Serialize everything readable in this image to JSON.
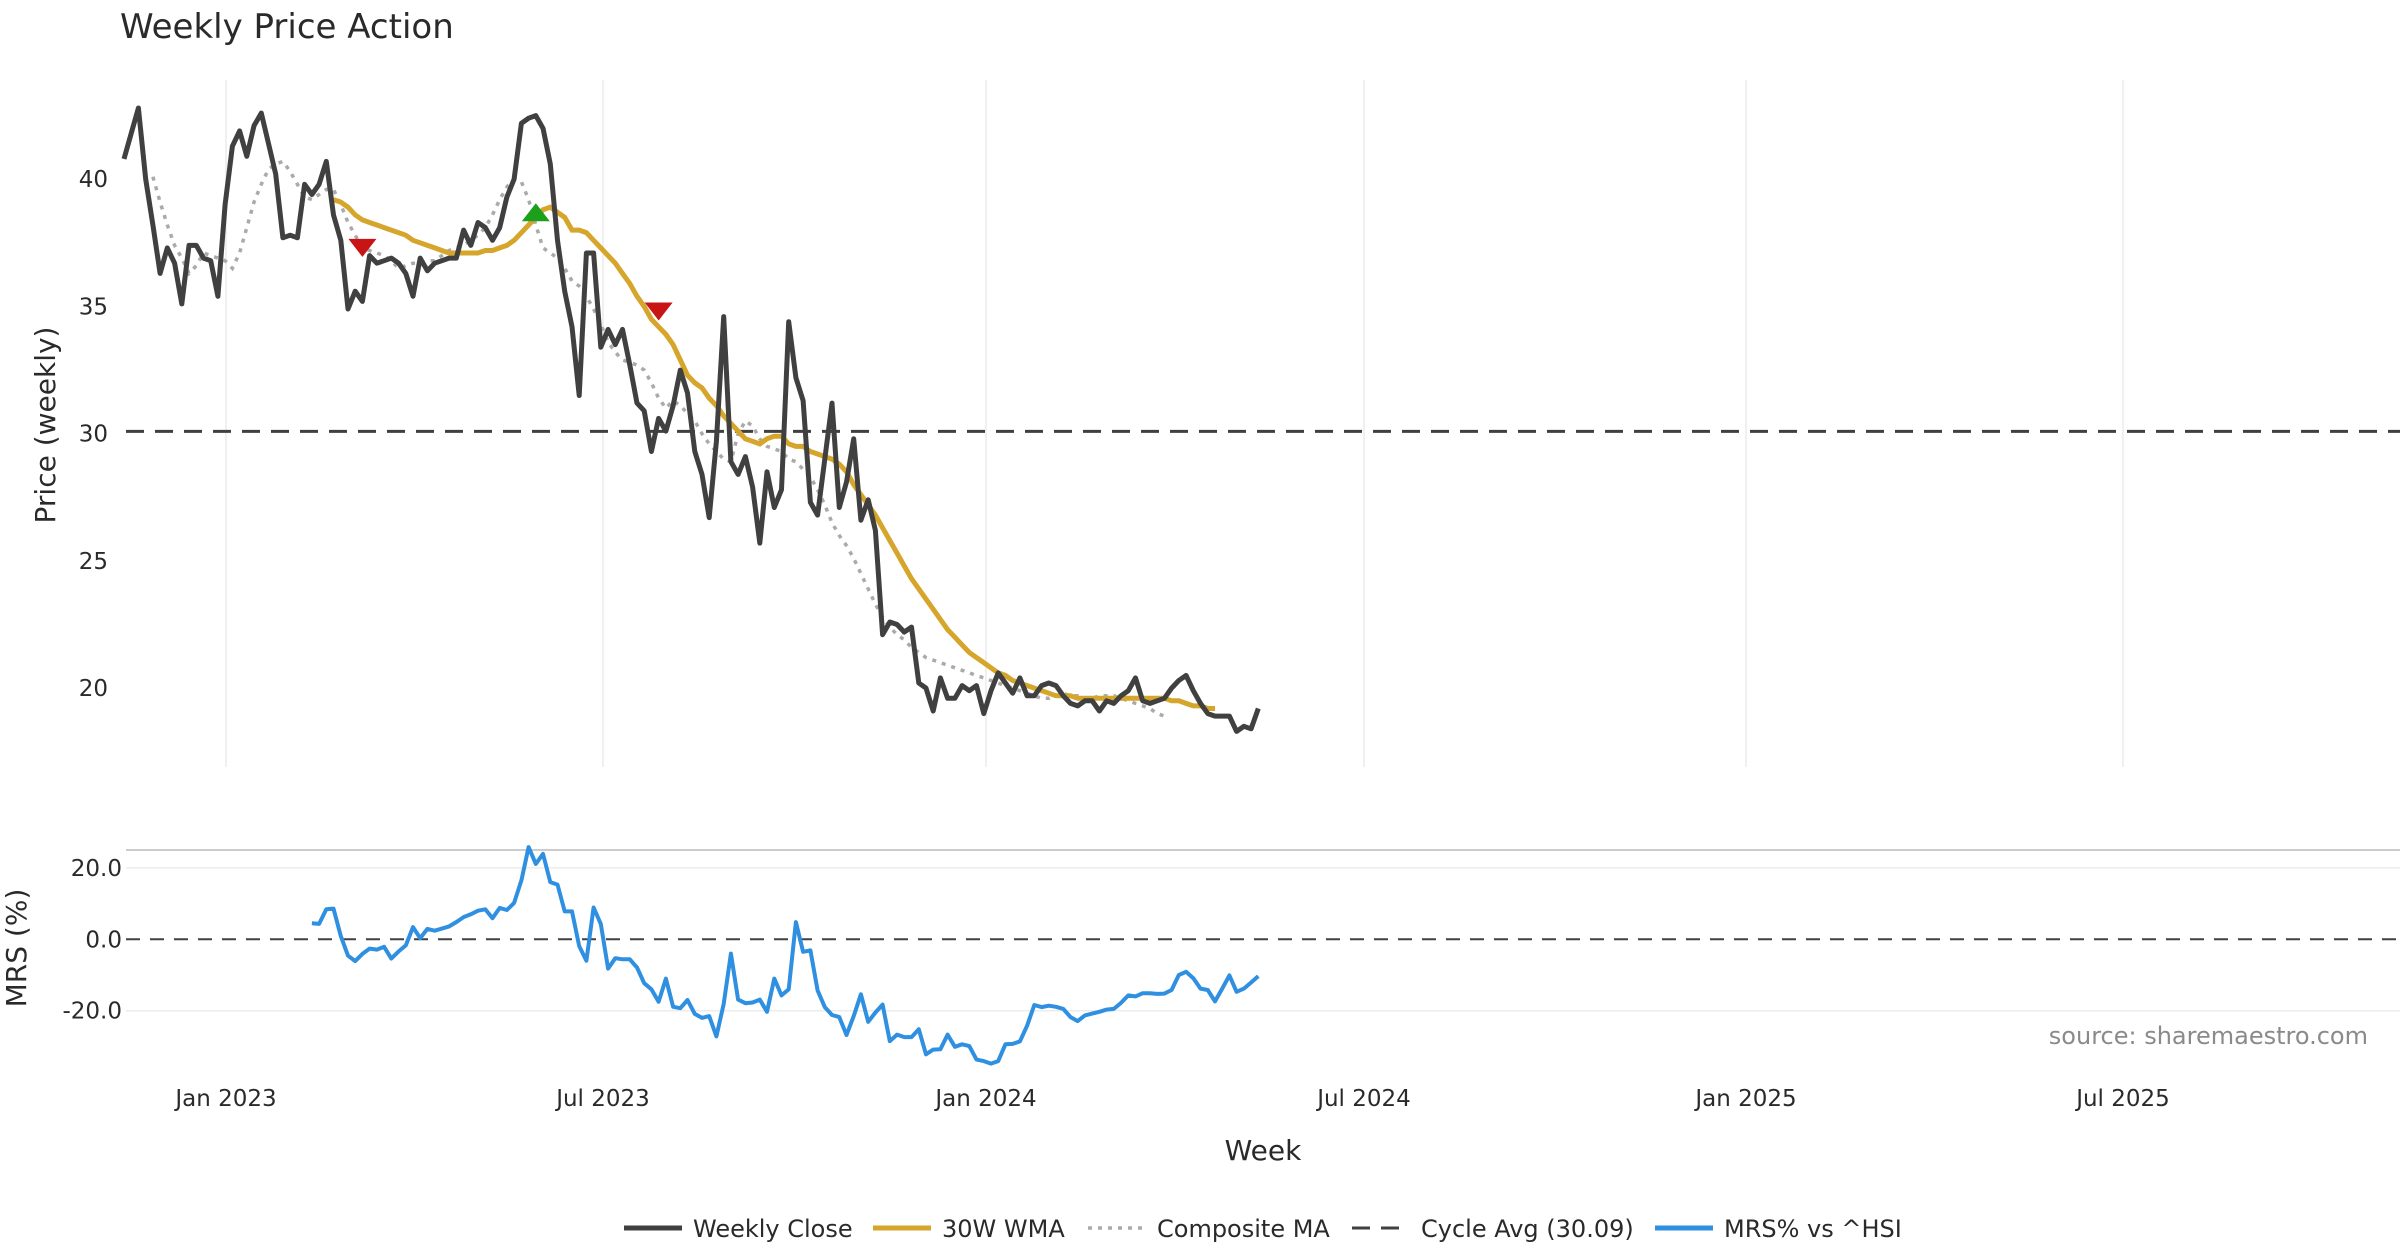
{
  "chart_data": {
    "type": "line",
    "title": "Weekly Price Action",
    "xlabel": "Week",
    "source": "source: sharemaestro.com",
    "x_ticks": [
      "Jan 2023",
      "Jul 2023",
      "Jan 2024",
      "Jul 2024",
      "Jan 2025",
      "Jul 2025"
    ],
    "price_panel": {
      "ylabel": "Price (weekly)",
      "ylim": [
        16.9,
        43.9
      ],
      "y_ticks": [
        "20",
        "25",
        "30",
        "35",
        "40"
      ],
      "y_tick_values": [
        20,
        25,
        30,
        35,
        40
      ],
      "cycle_avg": 30.09,
      "weekly_close": {
        "name": "Weekly Close",
        "color": "#404040",
        "values": [
          40.8,
          41.8,
          42.8,
          40.0,
          38.2,
          36.3,
          37.3,
          36.7,
          35.1,
          37.4,
          37.4,
          36.9,
          36.8,
          35.4,
          39.0,
          41.3,
          41.9,
          40.9,
          42.1,
          42.6,
          41.4,
          40.2,
          37.7,
          37.8,
          37.7,
          39.8,
          39.4,
          39.8,
          40.7,
          38.6,
          37.6,
          34.9,
          35.6,
          35.2,
          37.0,
          36.7,
          36.8,
          36.9,
          36.7,
          36.3,
          35.4,
          36.9,
          36.4,
          36.7,
          36.8,
          36.9,
          36.9,
          38.0,
          37.4,
          38.3,
          38.1,
          37.6,
          38.1,
          39.3,
          40.0,
          42.2,
          42.4,
          42.5,
          42.0,
          40.6,
          37.6,
          35.6,
          34.2,
          31.5,
          37.1,
          37.1,
          33.4,
          34.1,
          33.5,
          34.1,
          32.7,
          31.2,
          30.9,
          29.3,
          30.6,
          30.1,
          31.1,
          32.5,
          31.6,
          29.3,
          28.4,
          26.7,
          29.7,
          34.6,
          28.9,
          28.4,
          29.1,
          27.9,
          25.7,
          28.5,
          27.1,
          27.8,
          34.4,
          32.2,
          31.3,
          27.3,
          26.8,
          29.0,
          31.2,
          27.1,
          28.1,
          29.8,
          26.6,
          27.4,
          26.2,
          22.1,
          22.6,
          22.5,
          22.2,
          22.4,
          20.2,
          20.0,
          19.1,
          20.4,
          19.6,
          19.6,
          20.1,
          19.9,
          20.1,
          19.0,
          19.9,
          20.6,
          20.2,
          19.8,
          20.4,
          19.7,
          19.7,
          20.1,
          20.2,
          20.1,
          19.7,
          19.4,
          19.3,
          19.5,
          19.5,
          19.1,
          19.5,
          19.4,
          19.7,
          19.9,
          20.4,
          19.5,
          19.4,
          19.5,
          19.6,
          20.0,
          20.3,
          20.5,
          19.9,
          19.4,
          19.0,
          18.9,
          18.9,
          18.9,
          18.3,
          18.5,
          18.4,
          19.2
        ]
      },
      "wma_30w": {
        "name": "30W WMA",
        "color": "#d6a62c",
        "start_index": 29,
        "values": [
          39.2,
          39.1,
          38.9,
          38.6,
          38.4,
          38.3,
          38.2,
          38.1,
          38.0,
          37.9,
          37.8,
          37.6,
          37.5,
          37.4,
          37.3,
          37.2,
          37.1,
          37.1,
          37.1,
          37.1,
          37.1,
          37.2,
          37.2,
          37.3,
          37.4,
          37.6,
          37.9,
          38.2,
          38.5,
          38.8,
          38.9,
          38.7,
          38.5,
          38.0,
          38.0,
          37.9,
          37.6,
          37.3,
          37.0,
          36.7,
          36.3,
          35.9,
          35.4,
          35.0,
          34.5,
          34.2,
          33.9,
          33.5,
          32.9,
          32.3,
          32.0,
          31.8,
          31.4,
          31.1,
          30.7,
          30.4,
          30.1,
          29.8,
          29.7,
          29.6,
          29.8,
          29.9,
          29.9,
          29.6,
          29.5,
          29.5,
          29.3,
          29.2,
          29.1,
          29.0,
          28.8,
          28.5,
          28.0,
          27.6,
          27.2,
          26.8,
          26.3,
          25.8,
          25.3,
          24.8,
          24.3,
          23.9,
          23.5,
          23.1,
          22.7,
          22.3,
          22.0,
          21.7,
          21.4,
          21.2,
          21.0,
          20.8,
          20.6,
          20.5,
          20.3,
          20.2,
          20.1,
          20.0,
          19.9,
          19.8,
          19.7,
          19.7,
          19.7,
          19.6,
          19.6,
          19.6,
          19.6,
          19.6,
          19.6,
          19.6,
          19.6,
          19.6,
          19.6,
          19.6,
          19.6,
          19.6,
          19.5,
          19.5,
          19.4,
          19.3,
          19.3,
          19.2,
          19.2
        ]
      },
      "composite_ma": {
        "name": "Composite MA",
        "color": "#aaaaaa",
        "start_index": 4,
        "values": [
          40.1,
          39.1,
          38.2,
          37.4,
          36.9,
          36.3,
          36.6,
          37.1,
          37.0,
          36.9,
          36.8,
          36.5,
          37.1,
          38.1,
          39.1,
          39.8,
          40.4,
          40.6,
          40.7,
          40.3,
          39.8,
          39.3,
          39.2,
          39.4,
          39.6,
          39.6,
          39.0,
          38.3,
          37.8,
          37.3,
          37.2,
          37.1,
          37.0,
          36.8,
          36.5,
          36.6,
          36.7,
          36.7,
          36.8,
          36.8,
          37.0,
          37.2,
          37.3,
          37.4,
          37.6,
          37.8,
          38.1,
          38.6,
          39.2,
          39.7,
          40.0,
          39.9,
          39.2,
          38.2,
          37.3,
          37.1,
          36.9,
          36.5,
          36.0,
          35.8,
          35.4,
          34.9,
          34.3,
          33.6,
          33.2,
          32.9,
          32.8,
          32.7,
          32.5,
          32.0,
          31.4,
          31.0,
          31.3,
          31.1,
          30.8,
          30.5,
          30.0,
          29.6,
          29.3,
          29.0,
          28.9,
          30.0,
          30.5,
          30.3,
          29.8,
          29.5,
          29.4,
          29.3,
          29.0,
          28.9,
          28.6,
          28.3,
          27.8,
          27.2,
          26.5,
          26.0,
          25.6,
          25.1,
          24.5,
          23.9,
          23.3,
          22.8,
          22.4,
          22.1,
          21.9,
          21.6,
          21.4,
          21.2,
          21.1,
          21.0,
          20.9,
          20.8,
          20.7,
          20.6,
          20.5,
          20.4,
          20.3,
          20.2,
          20.1,
          20.0,
          19.9,
          19.8,
          19.7,
          19.6,
          19.6,
          19.7,
          19.8,
          19.7,
          19.7,
          19.6,
          19.6,
          19.7,
          19.7,
          19.7,
          19.6,
          19.5,
          19.4,
          19.3,
          19.2,
          19.0,
          18.9
        ]
      },
      "signals": [
        {
          "type": "sell",
          "index": 33,
          "value": 37.3,
          "color": "#c81414"
        },
        {
          "type": "buy",
          "index": 57,
          "value": 38.7,
          "color": "#1ca01c"
        },
        {
          "type": "sell",
          "index": 74,
          "value": 34.8,
          "color": "#c81414"
        }
      ]
    },
    "mrs_panel": {
      "ylabel": "MRS (%)",
      "ylim": [
        -31.0,
        25.0
      ],
      "y_ticks": [
        "20.0",
        "0.0",
        "-20.0"
      ],
      "y_tick_values": [
        20,
        0,
        -20
      ],
      "series": {
        "name": "MRS% vs ^HSI",
        "color": "#2f8fe0",
        "start_index": 26,
        "values": [
          4.5,
          4.3,
          8.4,
          8.6,
          0.9,
          -4.6,
          -6.1,
          -4.1,
          -2.6,
          -2.9,
          -2.1,
          -5.4,
          -3.4,
          -1.7,
          3.4,
          0.3,
          2.9,
          2.4,
          3.0,
          3.6,
          4.8,
          6.2,
          7.0,
          8.0,
          8.4,
          5.9,
          8.8,
          8.2,
          10.2,
          16.5,
          25.8,
          21.1,
          23.9,
          16.0,
          15.3,
          7.8,
          7.8,
          -1.9,
          -6.0,
          8.9,
          4.3,
          -8.2,
          -5.3,
          -5.6,
          -5.6,
          -7.9,
          -12.3,
          -14.0,
          -17.5,
          -11.0,
          -18.9,
          -19.3,
          -17.0,
          -20.9,
          -22.0,
          -21.5,
          -27.2,
          -18.1,
          -4.0,
          -16.9,
          -17.9,
          -17.7,
          -16.9,
          -20.3,
          -11.0,
          -15.7,
          -14.0,
          4.8,
          -3.5,
          -3.1,
          -14.3,
          -19.0,
          -21.2,
          -21.8,
          -26.8,
          -21.5,
          -15.4,
          -23.1,
          -20.5,
          -18.3,
          -28.5,
          -26.7,
          -27.4,
          -27.4,
          -25.2,
          -32.2,
          -30.9,
          -30.8,
          -26.7,
          -30.1,
          -29.4,
          -29.9,
          -33.7,
          -34.1,
          -34.8,
          -34.1,
          -29.4,
          -29.3,
          -28.6,
          -24.2,
          -18.4,
          -19.0,
          -18.6,
          -18.9,
          -19.5,
          -21.8,
          -22.9,
          -21.3,
          -20.8,
          -20.3,
          -19.7,
          -19.5,
          -17.8,
          -15.7,
          -16.0,
          -15.1,
          -15.1,
          -15.3,
          -15.2,
          -14.2,
          -10.0,
          -9.1,
          -10.9,
          -13.8,
          -14.2,
          -17.4,
          -13.8,
          -10.1,
          -14.7,
          -13.8,
          -12.1,
          -10.3
        ]
      }
    }
  }
}
